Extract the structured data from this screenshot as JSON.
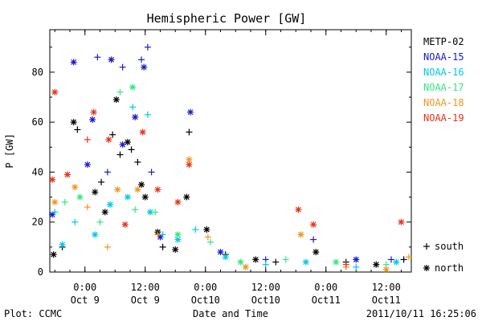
{
  "footer": {
    "plot_credit": "Plot: CCMC",
    "timestamp": "2011/10/11 16:25:06"
  },
  "chart_data": {
    "type": "scatter",
    "title": "Hemispheric Power [GW]",
    "xlabel": "Date and Time",
    "ylabel": "P [GW]",
    "ylim": [
      0,
      97
    ],
    "xlim": [
      "2011-10-08 17:00",
      "2011-10-11 17:00"
    ],
    "y_ticks": [
      0,
      20,
      40,
      60,
      80
    ],
    "x_ticks": [
      {
        "x": "2011-10-09 00:00",
        "time": "0:00",
        "day": "Oct 9"
      },
      {
        "x": "2011-10-09 12:00",
        "time": "12:00",
        "day": "Oct 9"
      },
      {
        "x": "2011-10-10 00:00",
        "time": "0:00",
        "day": "Oct10"
      },
      {
        "x": "2011-10-10 12:00",
        "time": "12:00",
        "day": "Oct10"
      },
      {
        "x": "2011-10-11 00:00",
        "time": "0:00",
        "day": "Oct11"
      },
      {
        "x": "2011-10-11 12:00",
        "time": "12:00",
        "day": "Oct11"
      }
    ],
    "grid": false,
    "legend_position": "right",
    "marker_legend": [
      {
        "symbol": "+",
        "label": "south"
      },
      {
        "symbol": "*",
        "label": "north"
      }
    ],
    "series": [
      {
        "name": "METP-02",
        "color": "#000000",
        "points": [
          {
            "x": "2011-10-08 17:45",
            "y": 7,
            "h": "north"
          },
          {
            "x": "2011-10-08 19:30",
            "y": 10,
            "h": "south"
          },
          {
            "x": "2011-10-08 21:45",
            "y": 60,
            "h": "north"
          },
          {
            "x": "2011-10-08 22:30",
            "y": 57,
            "h": "south"
          },
          {
            "x": "2011-10-09 02:00",
            "y": 32,
            "h": "north"
          },
          {
            "x": "2011-10-09 03:15",
            "y": 36,
            "h": "south"
          },
          {
            "x": "2011-10-09 04:00",
            "y": 24,
            "h": "north"
          },
          {
            "x": "2011-10-09 05:30",
            "y": 55,
            "h": "south"
          },
          {
            "x": "2011-10-09 06:15",
            "y": 69,
            "h": "north"
          },
          {
            "x": "2011-10-09 07:00",
            "y": 47,
            "h": "south"
          },
          {
            "x": "2011-10-09 08:30",
            "y": 52,
            "h": "north"
          },
          {
            "x": "2011-10-09 09:15",
            "y": 49,
            "h": "south"
          },
          {
            "x": "2011-10-09 10:30",
            "y": 44,
            "h": "south"
          },
          {
            "x": "2011-10-09 11:15",
            "y": 35,
            "h": "north"
          },
          {
            "x": "2011-10-09 12:00",
            "y": 30,
            "h": "north"
          },
          {
            "x": "2011-10-09 14:30",
            "y": 16,
            "h": "north"
          },
          {
            "x": "2011-10-09 15:30",
            "y": 10,
            "h": "south"
          },
          {
            "x": "2011-10-09 18:00",
            "y": 9,
            "h": "north"
          },
          {
            "x": "2011-10-09 20:15",
            "y": 30,
            "h": "north"
          },
          {
            "x": "2011-10-09 20:45",
            "y": 56,
            "h": "south"
          },
          {
            "x": "2011-10-10 00:15",
            "y": 17,
            "h": "north"
          },
          {
            "x": "2011-10-10 04:00",
            "y": 7,
            "h": "south"
          },
          {
            "x": "2011-10-10 10:00",
            "y": 5,
            "h": "north"
          },
          {
            "x": "2011-10-10 14:00",
            "y": 4,
            "h": "south"
          },
          {
            "x": "2011-10-10 22:00",
            "y": 8,
            "h": "north"
          },
          {
            "x": "2011-10-11 04:00",
            "y": 4,
            "h": "south"
          },
          {
            "x": "2011-10-11 10:00",
            "y": 3,
            "h": "north"
          },
          {
            "x": "2011-10-11 15:30",
            "y": 5,
            "h": "south"
          }
        ]
      },
      {
        "name": "NOAA-15",
        "color": "#1a1acc",
        "points": [
          {
            "x": "2011-10-08 17:30",
            "y": 23,
            "h": "north"
          },
          {
            "x": "2011-10-08 21:45",
            "y": 84,
            "h": "north"
          },
          {
            "x": "2011-10-09 00:30",
            "y": 43,
            "h": "north"
          },
          {
            "x": "2011-10-09 01:30",
            "y": 61,
            "h": "north"
          },
          {
            "x": "2011-10-09 02:30",
            "y": 86,
            "h": "south"
          },
          {
            "x": "2011-10-09 05:15",
            "y": 85,
            "h": "north"
          },
          {
            "x": "2011-10-09 04:30",
            "y": 40,
            "h": "south"
          },
          {
            "x": "2011-10-09 07:30",
            "y": 51,
            "h": "north"
          },
          {
            "x": "2011-10-09 07:30",
            "y": 82,
            "h": "south"
          },
          {
            "x": "2011-10-09 10:00",
            "y": 62,
            "h": "north"
          },
          {
            "x": "2011-10-09 11:15",
            "y": 85,
            "h": "south"
          },
          {
            "x": "2011-10-09 11:45",
            "y": 82,
            "h": "north"
          },
          {
            "x": "2011-10-09 12:30",
            "y": 90,
            "h": "south"
          },
          {
            "x": "2011-10-09 13:15",
            "y": 40,
            "h": "south"
          },
          {
            "x": "2011-10-09 15:00",
            "y": 14,
            "h": "north"
          },
          {
            "x": "2011-10-09 21:00",
            "y": 64,
            "h": "north"
          },
          {
            "x": "2011-10-10 03:00",
            "y": 8,
            "h": "north"
          },
          {
            "x": "2011-10-10 12:00",
            "y": 5,
            "h": "south"
          },
          {
            "x": "2011-10-10 21:30",
            "y": 13,
            "h": "south"
          },
          {
            "x": "2011-10-11 06:00",
            "y": 5,
            "h": "north"
          },
          {
            "x": "2011-10-11 13:00",
            "y": 5,
            "h": "south"
          }
        ]
      },
      {
        "name": "NOAA-16",
        "color": "#00c8e6",
        "points": [
          {
            "x": "2011-10-08 18:00",
            "y": 24,
            "h": "south"
          },
          {
            "x": "2011-10-08 19:30",
            "y": 11,
            "h": "north"
          },
          {
            "x": "2011-10-08 22:00",
            "y": 20,
            "h": "south"
          },
          {
            "x": "2011-10-09 02:00",
            "y": 15,
            "h": "north"
          },
          {
            "x": "2011-10-09 05:00",
            "y": 27,
            "h": "north"
          },
          {
            "x": "2011-10-09 08:30",
            "y": 30,
            "h": "north"
          },
          {
            "x": "2011-10-09 09:30",
            "y": 66,
            "h": "south"
          },
          {
            "x": "2011-10-09 12:30",
            "y": 63,
            "h": "south"
          },
          {
            "x": "2011-10-09 13:00",
            "y": 24,
            "h": "north"
          },
          {
            "x": "2011-10-09 15:30",
            "y": 15,
            "h": "south"
          },
          {
            "x": "2011-10-09 18:30",
            "y": 13,
            "h": "north"
          },
          {
            "x": "2011-10-09 22:00",
            "y": 17,
            "h": "south"
          },
          {
            "x": "2011-10-10 04:00",
            "y": 6,
            "h": "north"
          },
          {
            "x": "2011-10-10 12:00",
            "y": 3,
            "h": "south"
          },
          {
            "x": "2011-10-10 20:00",
            "y": 4,
            "h": "north"
          },
          {
            "x": "2011-10-11 06:00",
            "y": 2,
            "h": "south"
          },
          {
            "x": "2011-10-11 14:00",
            "y": 4,
            "h": "north"
          }
        ]
      },
      {
        "name": "NOAA-17",
        "color": "#33e680",
        "points": [
          {
            "x": "2011-10-08 20:00",
            "y": 28,
            "h": "south"
          },
          {
            "x": "2011-10-08 23:00",
            "y": 30,
            "h": "north"
          },
          {
            "x": "2011-10-09 03:00",
            "y": 20,
            "h": "south"
          },
          {
            "x": "2011-10-09 07:00",
            "y": 72,
            "h": "south"
          },
          {
            "x": "2011-10-09 09:30",
            "y": 74,
            "h": "north"
          },
          {
            "x": "2011-10-09 10:00",
            "y": 25,
            "h": "south"
          },
          {
            "x": "2011-10-09 14:00",
            "y": 24,
            "h": "south"
          },
          {
            "x": "2011-10-09 18:30",
            "y": 15,
            "h": "north"
          },
          {
            "x": "2011-10-10 01:00",
            "y": 12,
            "h": "south"
          },
          {
            "x": "2011-10-10 07:00",
            "y": 4,
            "h": "north"
          },
          {
            "x": "2011-10-10 16:00",
            "y": 5,
            "h": "south"
          },
          {
            "x": "2011-10-11 02:00",
            "y": 4,
            "h": "north"
          },
          {
            "x": "2011-10-11 12:00",
            "y": 3,
            "h": "south"
          }
        ]
      },
      {
        "name": "NOAA-18",
        "color": "#f0961e",
        "points": [
          {
            "x": "2011-10-08 18:00",
            "y": 28,
            "h": "north"
          },
          {
            "x": "2011-10-08 22:00",
            "y": 34,
            "h": "north"
          },
          {
            "x": "2011-10-09 00:30",
            "y": 26,
            "h": "south"
          },
          {
            "x": "2011-10-09 04:30",
            "y": 10,
            "h": "south"
          },
          {
            "x": "2011-10-09 06:30",
            "y": 33,
            "h": "north"
          },
          {
            "x": "2011-10-09 10:30",
            "y": 33,
            "h": "north"
          },
          {
            "x": "2011-10-09 14:30",
            "y": 15,
            "h": "south"
          },
          {
            "x": "2011-10-09 20:45",
            "y": 45,
            "h": "north"
          },
          {
            "x": "2011-10-10 00:30",
            "y": 14,
            "h": "south"
          },
          {
            "x": "2011-10-10 08:00",
            "y": 2,
            "h": "north"
          },
          {
            "x": "2011-10-10 19:00",
            "y": 15,
            "h": "north"
          },
          {
            "x": "2011-10-11 04:00",
            "y": 2,
            "h": "south"
          },
          {
            "x": "2011-10-11 12:00",
            "y": 1,
            "h": "north"
          },
          {
            "x": "2011-10-11 16:30",
            "y": 6,
            "h": "south"
          }
        ]
      },
      {
        "name": "NOAA-19",
        "color": "#e6331a",
        "points": [
          {
            "x": "2011-10-08 17:30",
            "y": 37,
            "h": "north"
          },
          {
            "x": "2011-10-08 18:00",
            "y": 72,
            "h": "north"
          },
          {
            "x": "2011-10-08 20:30",
            "y": 39,
            "h": "north"
          },
          {
            "x": "2011-10-09 00:30",
            "y": 53,
            "h": "south"
          },
          {
            "x": "2011-10-09 01:45",
            "y": 64,
            "h": "north"
          },
          {
            "x": "2011-10-09 04:45",
            "y": 53,
            "h": "north"
          },
          {
            "x": "2011-10-09 08:00",
            "y": 19,
            "h": "north"
          },
          {
            "x": "2011-10-09 11:30",
            "y": 56,
            "h": "north"
          },
          {
            "x": "2011-10-09 14:30",
            "y": 33,
            "h": "north"
          },
          {
            "x": "2011-10-09 18:30",
            "y": 28,
            "h": "north"
          },
          {
            "x": "2011-10-09 20:45",
            "y": 43,
            "h": "north"
          },
          {
            "x": "2011-10-10 18:30",
            "y": 25,
            "h": "north"
          },
          {
            "x": "2011-10-10 21:30",
            "y": 19,
            "h": "north"
          },
          {
            "x": "2011-10-11 15:00",
            "y": 20,
            "h": "north"
          },
          {
            "x": "2011-10-11 04:00",
            "y": 3,
            "h": "south"
          }
        ]
      }
    ]
  }
}
